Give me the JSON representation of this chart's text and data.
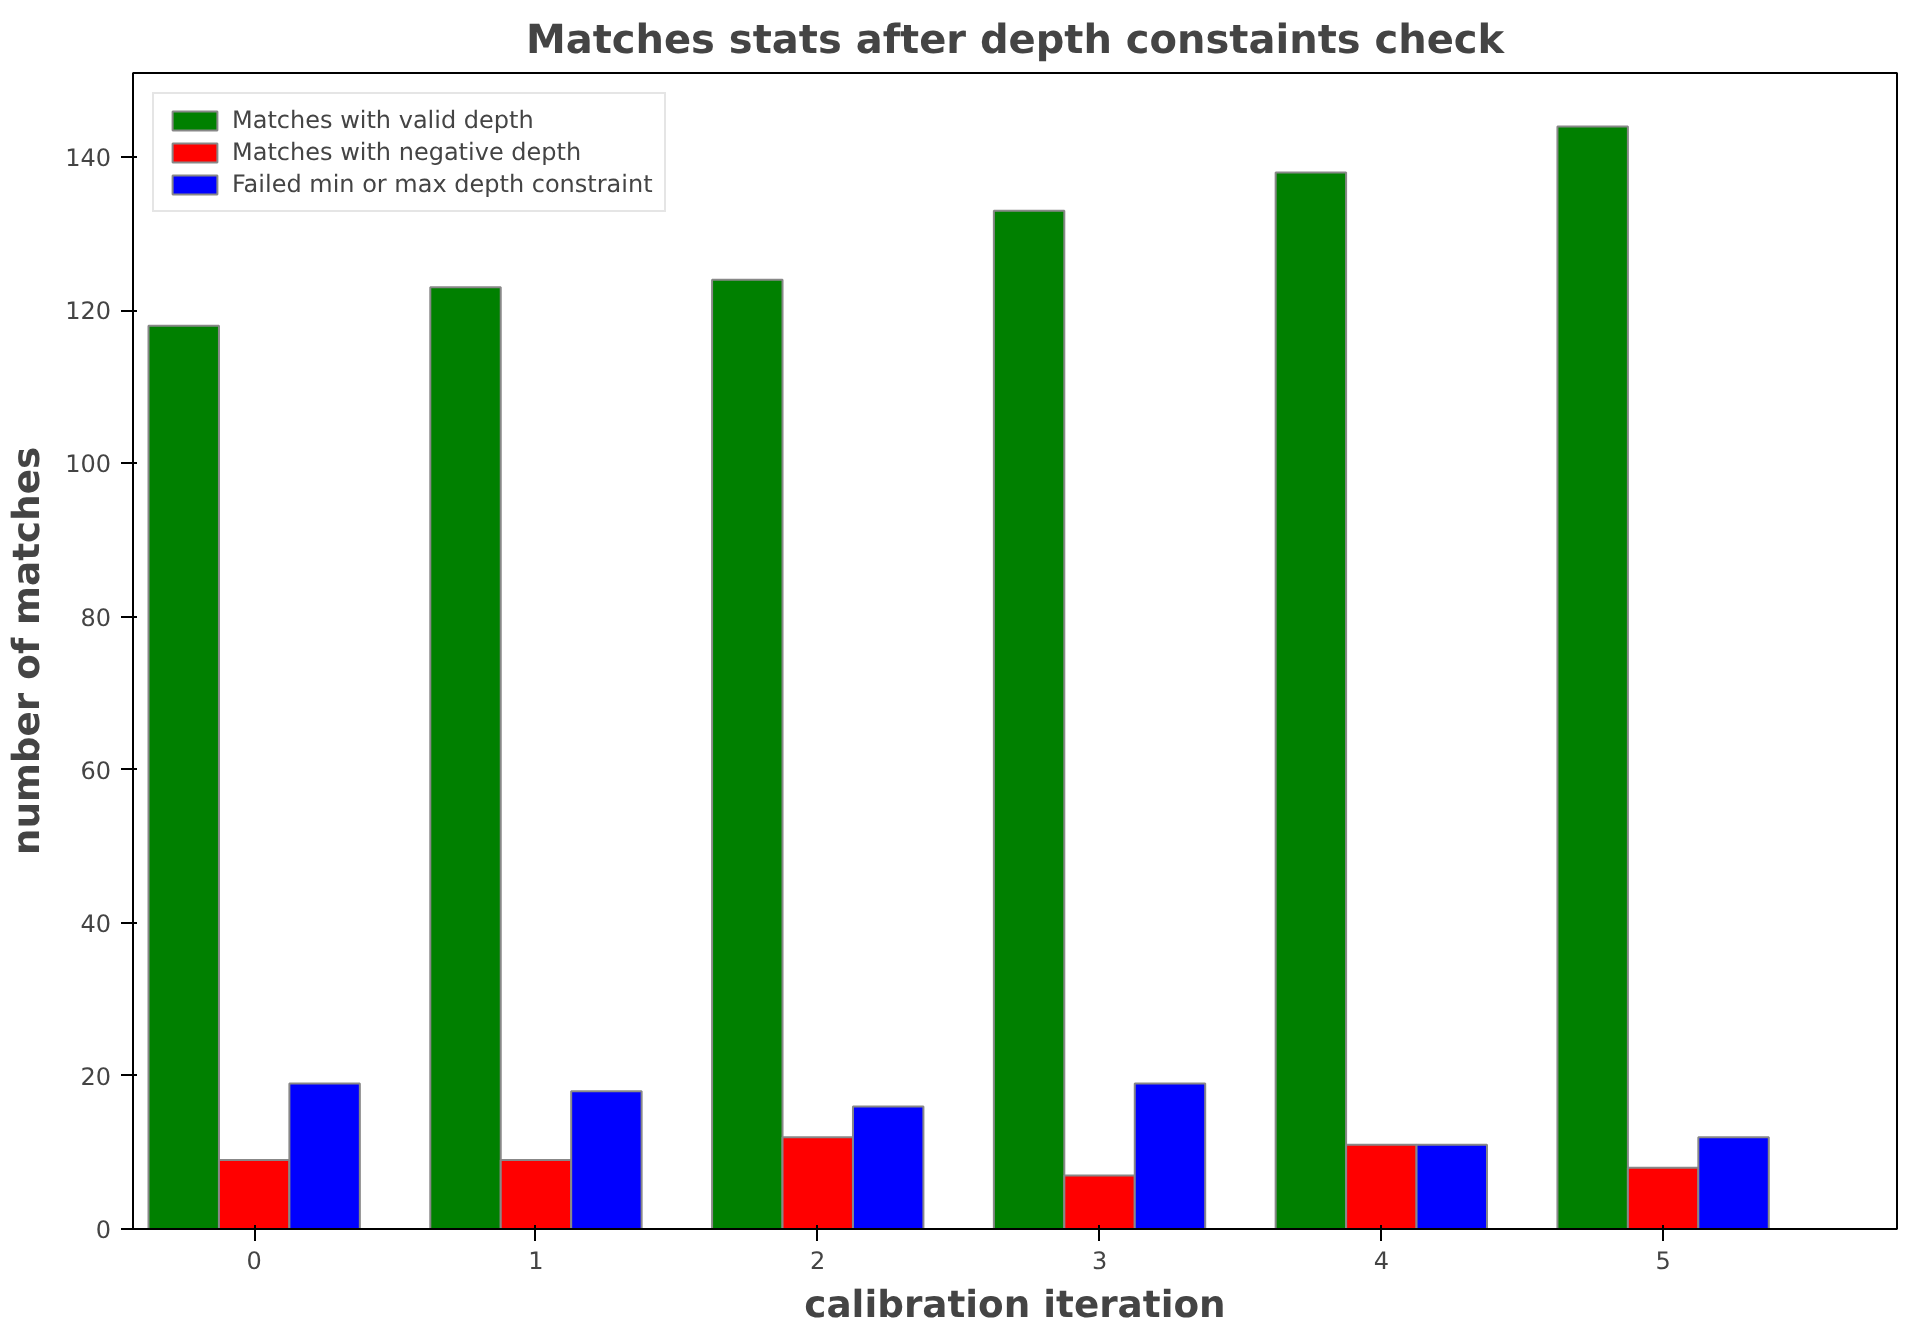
{
  "chart_data": {
    "type": "bar",
    "title": "Matches stats after depth constaints check",
    "xlabel": "calibration iteration",
    "ylabel": "number of matches",
    "x": [
      0,
      1,
      2,
      3,
      4,
      5
    ],
    "xlim": [
      -0.43,
      5.83
    ],
    "xticks": [
      0,
      1,
      2,
      3,
      4,
      5
    ],
    "ylim": [
      0,
      151
    ],
    "yticks": [
      0,
      20,
      40,
      60,
      80,
      100,
      120,
      140
    ],
    "series": [
      {
        "name": "Matches with valid depth",
        "color": "#008000",
        "values": [
          118,
          123,
          124,
          133,
          138,
          144
        ]
      },
      {
        "name": "Matches with negative depth",
        "color": "#ff0000",
        "values": [
          9,
          9,
          12,
          7,
          11,
          8
        ]
      },
      {
        "name": "Failed min or max depth constraint",
        "color": "#0000ff",
        "values": [
          19,
          18,
          16,
          19,
          11,
          12
        ]
      }
    ],
    "legend": "top left",
    "grid": false
  }
}
